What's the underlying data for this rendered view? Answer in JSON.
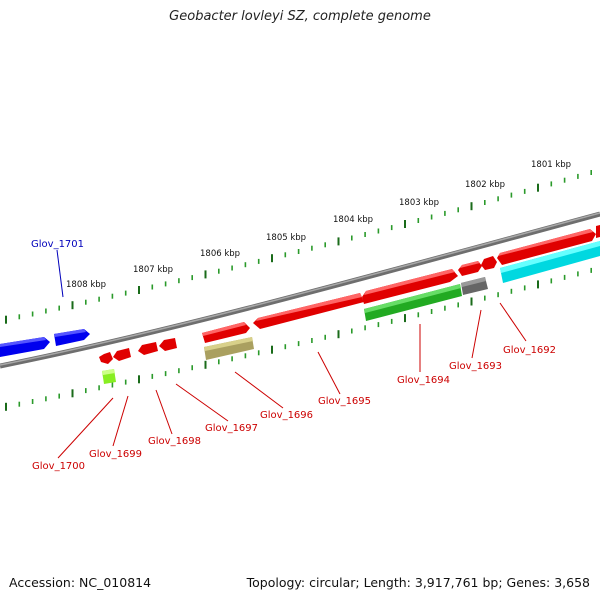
{
  "title": "Geobacter lovleyi SZ, complete genome",
  "footer": {
    "accession": "Accession: NC_010814",
    "stats": "Topology: circular; Length: 3,917,761 bp; Genes: 3,658"
  },
  "scale_labels": [
    "1801 kbp",
    "1802 kbp",
    "1803 kbp",
    "1804 kbp",
    "1805 kbp",
    "1806 kbp",
    "1807 kbp",
    "1808 kbp"
  ],
  "gene_labels": [
    {
      "name": "Glov_1701",
      "color": "#0000bb"
    },
    {
      "name": "Glov_1700",
      "color": "#cc0000"
    },
    {
      "name": "Glov_1699",
      "color": "#cc0000"
    },
    {
      "name": "Glov_1698",
      "color": "#cc0000"
    },
    {
      "name": "Glov_1697",
      "color": "#cc0000"
    },
    {
      "name": "Glov_1696",
      "color": "#cc0000"
    },
    {
      "name": "Glov_1695",
      "color": "#cc0000"
    },
    {
      "name": "Glov_1694",
      "color": "#cc0000"
    },
    {
      "name": "Glov_1693",
      "color": "#cc0000"
    },
    {
      "name": "Glov_1692",
      "color": "#cc0000"
    }
  ],
  "colors": {
    "backbone": "#808080",
    "cds_forward": "#ff0000",
    "cds_reverse": "#ff0000",
    "blue_gene": "#0000ff",
    "tick_dark": "#1a6b1a",
    "tick_light": "#2a9a2a",
    "cyan_feature": "#00ffff",
    "green_feature": "#33cc33",
    "olive_feature": "#bdb76b",
    "gray_feature": "#777777",
    "lime_feature": "#99ff33"
  }
}
